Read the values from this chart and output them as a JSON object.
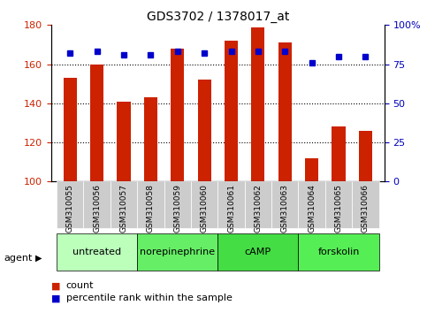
{
  "title": "GDS3702 / 1378017_at",
  "samples": [
    "GSM310055",
    "GSM310056",
    "GSM310057",
    "GSM310058",
    "GSM310059",
    "GSM310060",
    "GSM310061",
    "GSM310062",
    "GSM310063",
    "GSM310064",
    "GSM310065",
    "GSM310066"
  ],
  "counts": [
    153,
    160,
    141,
    143,
    168,
    152,
    172,
    179,
    171,
    112,
    128,
    126
  ],
  "percentile_ranks": [
    82,
    83,
    81,
    81,
    83,
    82,
    83,
    83,
    83,
    76,
    80,
    80
  ],
  "ylim_left": [
    100,
    180
  ],
  "ylim_right": [
    0,
    100
  ],
  "yticks_left": [
    100,
    120,
    140,
    160,
    180
  ],
  "yticks_right": [
    0,
    25,
    50,
    75,
    100
  ],
  "yticklabels_right": [
    "0",
    "25",
    "50",
    "75",
    "100%"
  ],
  "bar_color": "#cc2200",
  "dot_color": "#0000cc",
  "bar_width": 0.5,
  "agent_groups": [
    {
      "label": "untreated",
      "start": 0,
      "end": 2,
      "color": "#bbffbb"
    },
    {
      "label": "norepinephrine",
      "start": 3,
      "end": 5,
      "color": "#66ee66"
    },
    {
      "label": "cAMP",
      "start": 6,
      "end": 8,
      "color": "#44dd44"
    },
    {
      "label": "forskolin",
      "start": 9,
      "end": 11,
      "color": "#55ee55"
    }
  ],
  "tick_color_left": "#cc2200",
  "tick_color_right": "#0000bb",
  "agent_label": "agent",
  "bg_sample_color": "#cccccc"
}
